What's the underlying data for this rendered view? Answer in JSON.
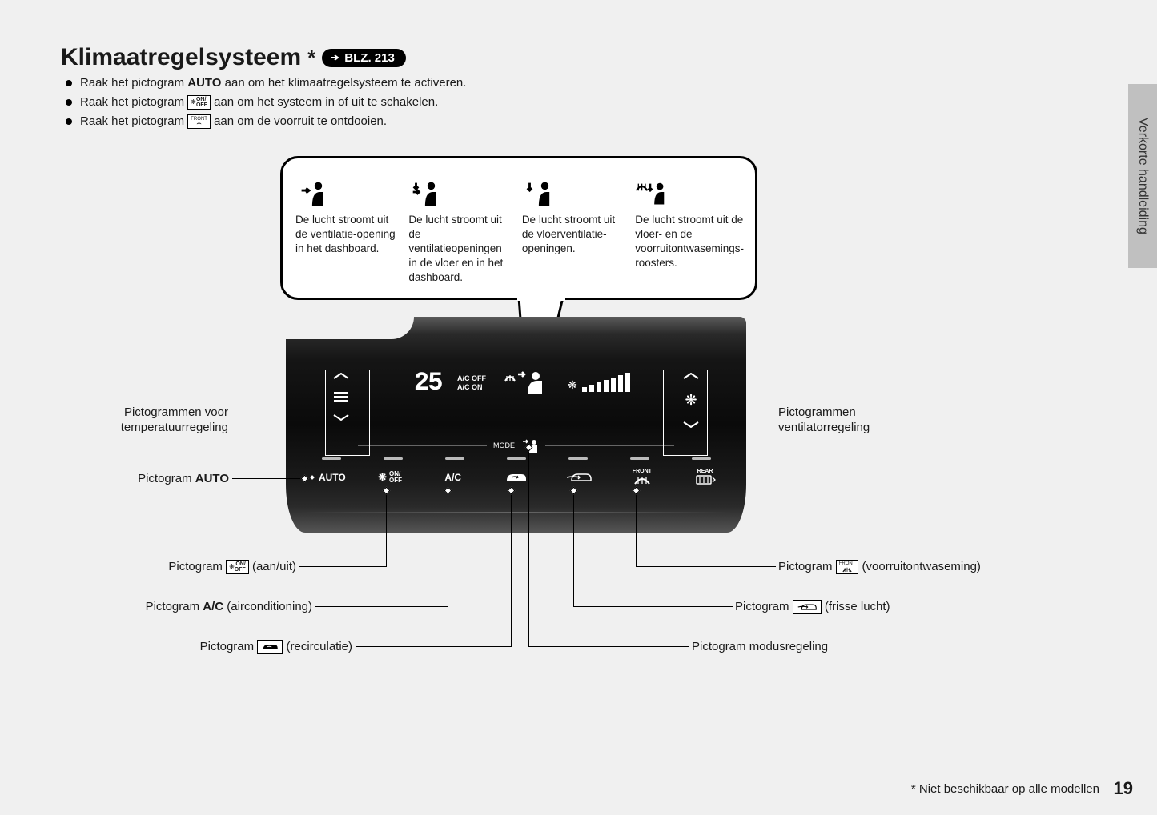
{
  "sideTab": "Verkorte handleiding",
  "title": "Klimaatregelsysteem",
  "titleSuffix": "*",
  "pageRef": "BLZ. 213",
  "bullets": {
    "b1_pre": "Raak het pictogram ",
    "b1_bold": "AUTO",
    "b1_post": " aan om het klimaatregelsysteem te activeren.",
    "b2_pre": "Raak het pictogram ",
    "b2_post": " aan om het systeem in of uit te schakelen.",
    "b3_pre": "Raak het pictogram ",
    "b3_post": " aan om de voorruit te ontdooien."
  },
  "onoffIcon": {
    "top": "ON/",
    "bottom": "OFF"
  },
  "frontIcon": "FRONT",
  "callout": {
    "c1": "De lucht stroomt uit de ventilatie-opening in het dashboard.",
    "c2": "De lucht stroomt uit de ventilatieopeningen in de vloer en in het dashboard.",
    "c3": "De lucht stroomt uit de vloerventilatie-openingen.",
    "c4": "De lucht stroomt uit de vloer- en de voorruitontwasemings-roosters."
  },
  "display": {
    "temp": "25",
    "acOff": "A/C OFF",
    "acOn": "A/C ON",
    "mode": "MODE",
    "fanBars": [
      6,
      9,
      12,
      15,
      18,
      21,
      24
    ]
  },
  "buttons": {
    "auto": "AUTO",
    "onoffTop": "ON/",
    "onoffBot": "OFF",
    "ac": "A/C",
    "front": "FRONT",
    "rear": "REAR"
  },
  "labels": {
    "tempControl": "Pictogrammen voor temperatuurregeling",
    "fanControl": "Pictogrammen ventilatorregeling",
    "auto_pre": "Pictogram ",
    "auto_bold": "AUTO",
    "onoff_pre": "Pictogram ",
    "onoff_post": " (aan/uit)",
    "ac_pre": "Pictogram ",
    "ac_bold": "A/C",
    "ac_post": " (airconditioning)",
    "recirc_pre": "Pictogram ",
    "recirc_post": " (recirculatie)",
    "defrost_pre": "Pictogram ",
    "defrost_post": " (voorruitontwaseming)",
    "fresh_pre": "Pictogram ",
    "fresh_post": " (frisse lucht)",
    "modeControl": "Pictogram modusregeling"
  },
  "footnote": "* Niet beschikbaar op alle modellen",
  "pageNum": "19",
  "colors": {
    "panelDark": "#0a0a0a",
    "textWhite": "#ffffff"
  }
}
